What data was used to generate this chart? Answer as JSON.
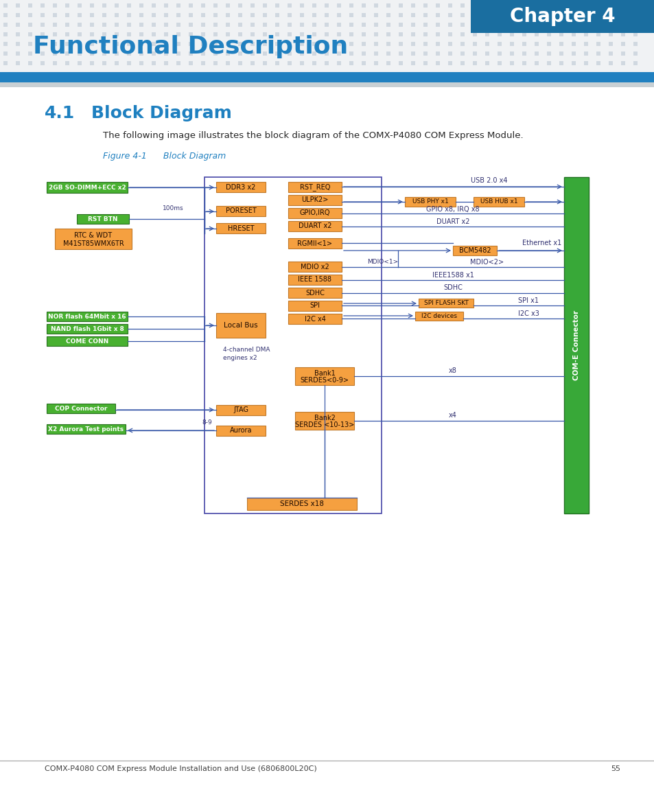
{
  "page_bg": "#ffffff",
  "header_bg": "#2080c0",
  "chapter_box_bg": "#1a6ea0",
  "chapter_text": "Chapter 4",
  "dot_color": "#d0d8e0",
  "title_text": "Functional Description",
  "title_color": "#2080c0",
  "blue_bar_color": "#2080c0",
  "section_num": "4.1",
  "section_title": "Block Diagram",
  "section_color": "#1e80c0",
  "body_text": "The following image illustrates the block diagram of the COMX-P4080 COM Express Module.",
  "figure_caption": "Figure 4-1      Block Diagram",
  "figure_caption_color": "#2080c0",
  "footer_text": "COMX-P4080 COM Express Module Installation and Use (6806800L20C)",
  "footer_page": "55",
  "orange_fill": "#f5a040",
  "orange_edge": "#c07828",
  "green_fill": "#48b030",
  "green_edge": "#287020",
  "cpu_edge": "#4848a8",
  "come_fill": "#38a838",
  "come_edge": "#207020",
  "line_col": "#3858a8",
  "text_col": "#303070",
  "header_dot_bg": "#f0f2f4"
}
